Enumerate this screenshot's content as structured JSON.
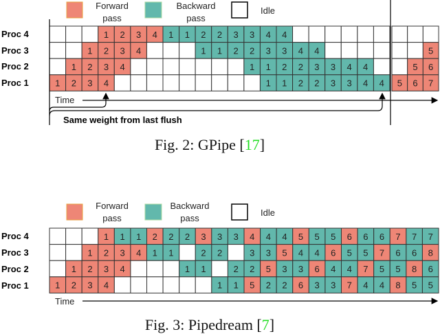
{
  "colors": {
    "forward": "#ee8676",
    "backward": "#62b8ac",
    "idle": "#ffffff",
    "citation": "#22dd22"
  },
  "legend": {
    "forward": "Forward pass",
    "forward_l1": "Forward",
    "forward_l2": "pass",
    "backward_l1": "Backward",
    "backward_l2": "pass",
    "idle": "Idle"
  },
  "row_labels": [
    "Proc 4",
    "Proc 3",
    "Proc 2",
    "Proc 1"
  ],
  "time_label": "Time",
  "fig2": {
    "caption_prefix": "Fig. 2: GPipe [",
    "citation": "17",
    "caption_suffix": "]",
    "annotation": "Same weight from last flush",
    "rows": [
      [
        "",
        "",
        "",
        "F1",
        "F2",
        "F3",
        "F4",
        "B1",
        "B1",
        "B2",
        "B2",
        "B3",
        "B3",
        "B4",
        "B4",
        "",
        "",
        "",
        "",
        "",
        "",
        "",
        "",
        ""
      ],
      [
        "",
        "",
        "F1",
        "F2",
        "F3",
        "F4",
        "",
        "",
        "",
        "B1",
        "B1",
        "B2",
        "B2",
        "B3",
        "B3",
        "B4",
        "B4",
        "",
        "",
        "",
        "",
        "",
        "",
        "F5"
      ],
      [
        "",
        "F1",
        "F2",
        "F3",
        "F4",
        "",
        "",
        "",
        "",
        "",
        "",
        "",
        "B1",
        "B1",
        "B2",
        "B2",
        "B3",
        "B3",
        "B4",
        "B4",
        "",
        "",
        "F5",
        "F6"
      ],
      [
        "F1",
        "F2",
        "F3",
        "F4",
        "",
        "",
        "",
        "",
        "",
        "",
        "",
        "",
        "",
        "B1",
        "B1",
        "B2",
        "B2",
        "B3",
        "B3",
        "B4",
        "B4",
        "F5",
        "F6",
        "F7"
      ]
    ]
  },
  "fig3": {
    "caption_prefix": "Fig. 3: Pipedream [",
    "citation": "7",
    "caption_suffix": "]",
    "rows": [
      [
        "",
        "",
        "",
        "F1",
        "B1",
        "B1",
        "F2",
        "B2",
        "B2",
        "F3",
        "B3",
        "B3",
        "F4",
        "B4",
        "B4",
        "F5",
        "B5",
        "B5",
        "F6",
        "B6",
        "B6",
        "F7",
        "B7",
        "B7"
      ],
      [
        "",
        "",
        "F1",
        "F2",
        "F3",
        "F4",
        "B1",
        "B1",
        "",
        "B2",
        "B2",
        "",
        "B3",
        "B3",
        "F5",
        "B4",
        "B4",
        "F6",
        "B5",
        "B5",
        "F7",
        "B6",
        "B6",
        "F8"
      ],
      [
        "",
        "F1",
        "F2",
        "F3",
        "F4",
        "",
        "",
        "",
        "B1",
        "B1",
        "",
        "B2",
        "B2",
        "F5",
        "B3",
        "B3",
        "F6",
        "B4",
        "B4",
        "F7",
        "B5",
        "B5",
        "F8",
        "B6"
      ],
      [
        "F1",
        "F2",
        "F3",
        "F4",
        "",
        "",
        "",
        "",
        "",
        "",
        "B1",
        "B1",
        "F5",
        "B2",
        "B2",
        "F6",
        "B3",
        "B3",
        "F7",
        "B4",
        "B4",
        "F8",
        "B5",
        "B5"
      ]
    ]
  }
}
